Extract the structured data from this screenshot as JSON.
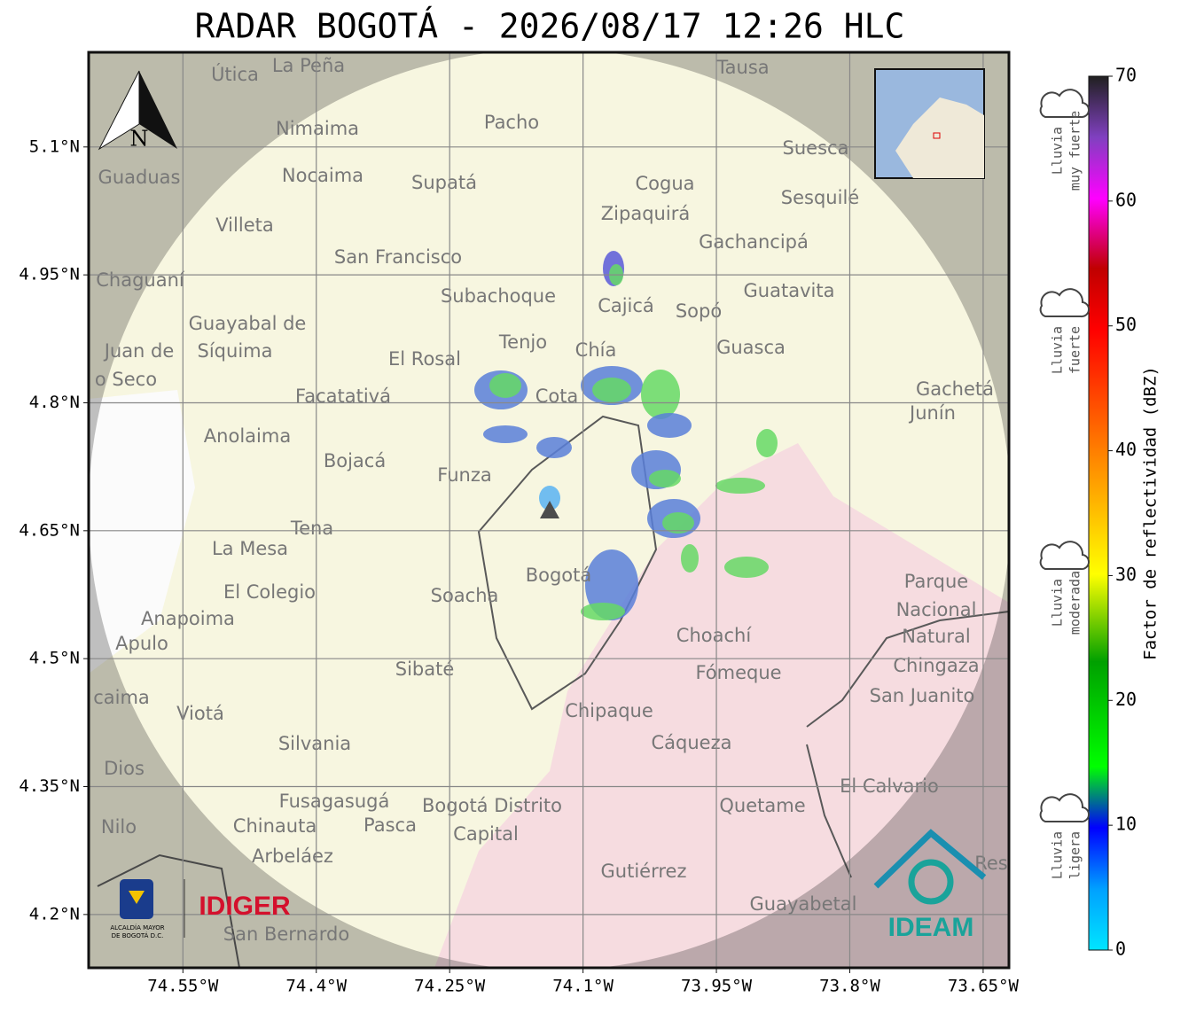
{
  "header": {
    "title": "RADAR BOGOTÁ - 2026/08/17 12:26 HLC"
  },
  "map": {
    "xlim": [
      -74.656,
      -73.621
    ],
    "ylim": [
      4.1375,
      5.211
    ],
    "xticks": [
      {
        "value": -74.55,
        "label": "74.55°W"
      },
      {
        "value": -74.4,
        "label": "74.4°W"
      },
      {
        "value": -74.25,
        "label": "74.25°W"
      },
      {
        "value": -74.1,
        "label": "74.1°W"
      },
      {
        "value": -73.95,
        "label": "73.95°W"
      },
      {
        "value": -73.8,
        "label": "73.8°W"
      },
      {
        "value": -73.65,
        "label": "73.65°W"
      }
    ],
    "yticks": [
      {
        "value": 5.1,
        "label": "5.1°N"
      },
      {
        "value": 4.95,
        "label": "4.95°N"
      },
      {
        "value": 4.8,
        "label": "4.8°N"
      },
      {
        "value": 4.65,
        "label": "4.65°N"
      },
      {
        "value": 4.5,
        "label": "4.5°N"
      },
      {
        "value": 4.35,
        "label": "4.35°N"
      },
      {
        "value": 4.2,
        "label": "4.2°N"
      }
    ],
    "north": "N",
    "places": [
      "La Peña",
      "Útica",
      "Tausa",
      "Pacho",
      "Nimaima",
      "Guaduas",
      "Nocaima",
      "Supatá",
      "Cogua",
      "Suesca",
      "Sesquilé",
      "Zipaquirá",
      "Villeta",
      "Gachancipá",
      "Chaguaní",
      "San Francisco",
      "Guatavita",
      "Subachoque",
      "Cajicá",
      "Sopó",
      "Guayabal de",
      "Síquima",
      "Tenjo",
      "Chía",
      "Guasca",
      "Juan de",
      "o Seco",
      "El Rosal",
      "Facatativá",
      "Cota",
      "Gachetá",
      "Junín",
      "Anolaima",
      "Bojacá",
      "Funza",
      "Tena",
      "La Mesa",
      "El Colegio",
      "Soacha",
      "Bogotá",
      "Anapoima",
      "Apulo",
      "Choachí",
      "Sibaté",
      "Fómeque",
      "Parque",
      "Nacional",
      "Natural",
      "Chingaza",
      "San Juanito",
      "caima",
      "Viotá",
      "Chipaque",
      "Silvania",
      "Cáqueza",
      "Dios",
      "El Calvario",
      "Fusagasugá",
      "Bogotá Distrito",
      "Capital",
      "Quetame",
      "Nilo",
      "Chinauta",
      "Pasca",
      "Arbeláez",
      "Gutiérrez",
      "Guayabetal",
      "San Bernardo",
      "Res"
    ]
  },
  "logos": {
    "alcaldia": [
      "ALCALDÍA MAYOR",
      "DE BOGOTÁ D.C."
    ],
    "idiger": "IDIGER",
    "ideam": "IDEAM"
  },
  "colorbar": {
    "label": "Factor de reflectividad (dBZ)",
    "lim": [
      0,
      70
    ],
    "ticks": [
      0,
      10,
      20,
      30,
      40,
      50,
      60,
      70
    ]
  },
  "legend": [
    [
      "Lluvia",
      "muy fuerte"
    ],
    [
      "Lluvia",
      "fuerte"
    ],
    [
      "Lluvia",
      "moderada"
    ],
    [
      "Lluvia",
      "ligera"
    ]
  ]
}
